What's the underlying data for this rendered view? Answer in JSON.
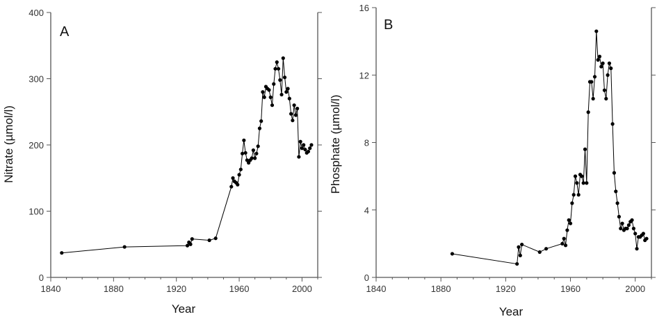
{
  "chart_data": [
    {
      "type": "line",
      "panel_label": "A",
      "xlabel": "Year",
      "ylabel": "Nitrate (µmol/l)",
      "xlim": [
        1840,
        2010
      ],
      "ylim": [
        0,
        400
      ],
      "xticks": [
        1840,
        1880,
        1920,
        1960,
        2000
      ],
      "yticks": [
        0,
        100,
        200,
        300,
        400
      ],
      "x": [
        1847,
        1887,
        1927,
        1928,
        1929,
        1930,
        1941,
        1945,
        1955,
        1956,
        1957,
        1958,
        1959,
        1960,
        1961,
        1962,
        1963,
        1964,
        1965,
        1966,
        1967,
        1968,
        1969,
        1970,
        1971,
        1972,
        1973,
        1974,
        1975,
        1976,
        1977,
        1978,
        1979,
        1980,
        1981,
        1982,
        1983,
        1984,
        1985,
        1986,
        1987,
        1988,
        1989,
        1990,
        1991,
        1992,
        1993,
        1994,
        1995,
        1996,
        1997,
        1998,
        1999,
        2000,
        2001,
        2002,
        2003,
        2004,
        2005,
        2006
      ],
      "y": [
        37,
        46,
        48,
        53,
        50,
        58,
        56,
        59,
        137,
        150,
        145,
        143,
        140,
        155,
        163,
        187,
        207,
        188,
        177,
        173,
        177,
        180,
        192,
        180,
        187,
        198,
        225,
        236,
        280,
        272,
        288,
        285,
        283,
        272,
        260,
        292,
        315,
        325,
        315,
        298,
        276,
        331,
        302,
        280,
        285,
        270,
        247,
        237,
        260,
        245,
        255,
        182,
        205,
        195,
        200,
        193,
        188,
        190,
        195,
        200
      ]
    },
    {
      "type": "line",
      "panel_label": "B",
      "xlabel": "Year",
      "ylabel": "Phosphate (µmol/l)",
      "xlim": [
        1840,
        2010
      ],
      "ylim": [
        0,
        16
      ],
      "xticks": [
        1840,
        1880,
        1920,
        1960,
        2000
      ],
      "yticks": [
        0,
        4,
        8,
        12,
        16
      ],
      "x": [
        1887,
        1927,
        1928,
        1929,
        1930,
        1941,
        1945,
        1955,
        1956,
        1957,
        1958,
        1959,
        1960,
        1961,
        1962,
        1963,
        1964,
        1965,
        1966,
        1967,
        1968,
        1969,
        1970,
        1971,
        1972,
        1973,
        1974,
        1975,
        1976,
        1977,
        1978,
        1979,
        1980,
        1981,
        1982,
        1983,
        1984,
        1985,
        1986,
        1987,
        1988,
        1989,
        1990,
        1991,
        1992,
        1993,
        1994,
        1995,
        1996,
        1997,
        1998,
        1999,
        2000,
        2001,
        2002,
        2003,
        2004,
        2005,
        2006,
        2007
      ],
      "y": [
        1.4,
        0.8,
        1.8,
        1.3,
        1.95,
        1.5,
        1.7,
        2.0,
        2.3,
        1.9,
        2.8,
        3.4,
        3.2,
        4.4,
        4.9,
        6.0,
        5.6,
        4.9,
        6.1,
        6.0,
        5.6,
        7.6,
        5.6,
        9.8,
        11.6,
        11.6,
        10.6,
        11.9,
        14.6,
        12.9,
        13.1,
        12.5,
        12.7,
        11.1,
        10.6,
        12.0,
        12.7,
        12.4,
        9.1,
        6.2,
        5.1,
        4.4,
        3.6,
        2.9,
        3.2,
        2.8,
        2.9,
        2.9,
        3.1,
        3.3,
        3.4,
        2.9,
        2.6,
        1.7,
        2.4,
        2.4,
        2.5,
        2.6,
        2.2,
        2.3
      ]
    }
  ]
}
